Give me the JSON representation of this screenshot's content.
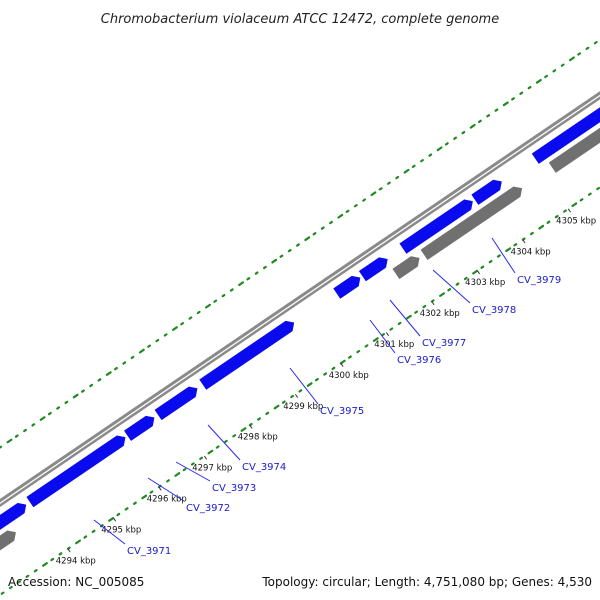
{
  "title": "Chromobacterium violaceum ATCC 12472, complete genome",
  "footer": {
    "accession": "Accession: NC_005085",
    "summary": "Topology: circular; Length: 4,751,080 bp; Genes: 4,530"
  },
  "colors": {
    "forward_gene": "#0a0aee",
    "reverse_gene": "#707070",
    "backbone": "#8a8a8a",
    "gc_dots": "#1f8a1f",
    "label": "#1a1acc",
    "leader": "#2a2aee"
  },
  "kbp_ticks": [
    {
      "label": "4294 kbp"
    },
    {
      "label": "4295 kbp"
    },
    {
      "label": "4296 kbp"
    },
    {
      "label": "4297 kbp"
    },
    {
      "label": "4298 kbp"
    },
    {
      "label": "4299 kbp"
    },
    {
      "label": "4300 kbp"
    },
    {
      "label": "4301 kbp"
    },
    {
      "label": "4302 kbp"
    },
    {
      "label": "4303 kbp"
    },
    {
      "label": "4304 kbp"
    },
    {
      "label": "4305 kbp"
    }
  ],
  "gene_labels": [
    {
      "label": "CV_3971"
    },
    {
      "label": "CV_3972"
    },
    {
      "label": "CV_3973"
    },
    {
      "label": "CV_3974"
    },
    {
      "label": "CV_3975"
    },
    {
      "label": "CV_3976"
    },
    {
      "label": "CV_3977"
    },
    {
      "label": "CV_3978"
    },
    {
      "label": "CV_3979"
    }
  ]
}
